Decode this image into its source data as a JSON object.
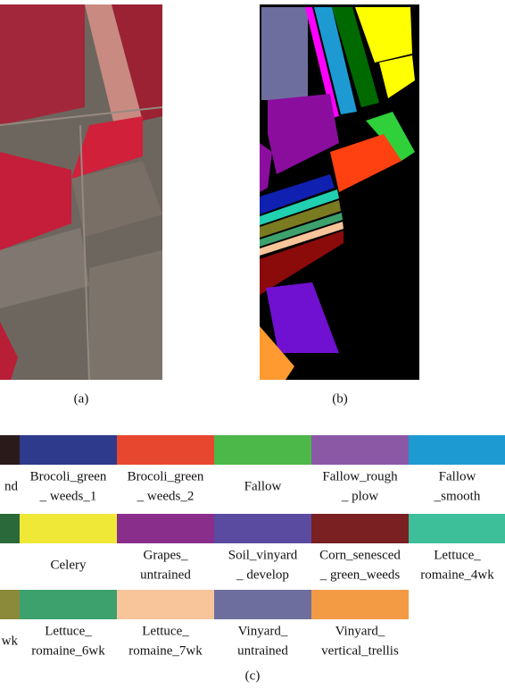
{
  "figure": {
    "captions": {
      "a": "(a)",
      "b": "(b)",
      "c": "(c)"
    },
    "legend": {
      "rows": [
        [
          {
            "lines": [
              "nd"
            ],
            "color": "#2a1a1a"
          },
          {
            "lines": [
              "Brocoli_green",
              "_ weeds_1"
            ],
            "color": "#2e3a8c"
          },
          {
            "lines": [
              "Brocoli_green",
              "_ weeds_2"
            ],
            "color": "#e8472f"
          },
          {
            "lines": [
              "Fallow"
            ],
            "color": "#4cb84a"
          },
          {
            "lines": [
              "Fallow_rough",
              "_ plow"
            ],
            "color": "#8b58a6"
          },
          {
            "lines": [
              "Fallow",
              "_smooth"
            ],
            "color": "#1e9ad2"
          }
        ],
        [
          {
            "color": "#2a6a3a"
          },
          {
            "lines": [
              "Celery"
            ],
            "color": "#f0e837"
          },
          {
            "lines": [
              "Grapes_",
              "untrained"
            ],
            "color": "#8a2e8c"
          },
          {
            "lines": [
              "Soil_vinyard",
              "_ develop"
            ],
            "color": "#5a4aa0"
          },
          {
            "lines": [
              "Corn_senesced",
              "_ green_weeds"
            ],
            "color": "#7a1f22"
          },
          {
            "lines": [
              "Lettuce_",
              "romaine_4wk"
            ],
            "color": "#3dbf9a"
          }
        ],
        [
          {
            "lines": [
              "wk"
            ],
            "color": "#8a8a3a"
          },
          {
            "lines": [
              "Lettuce_",
              "romaine_6wk"
            ],
            "color": "#3da16e"
          },
          {
            "lines": [
              "Lettuce_",
              "romaine_7wk"
            ],
            "color": "#f8c49a"
          },
          {
            "lines": [
              "Vinyard_",
              "untrained"
            ],
            "color": "#6e6e9e"
          },
          {
            "lines": [
              "Vinyard_",
              "vertical_trellis"
            ],
            "color": "#f39a45"
          }
        ]
      ]
    }
  }
}
